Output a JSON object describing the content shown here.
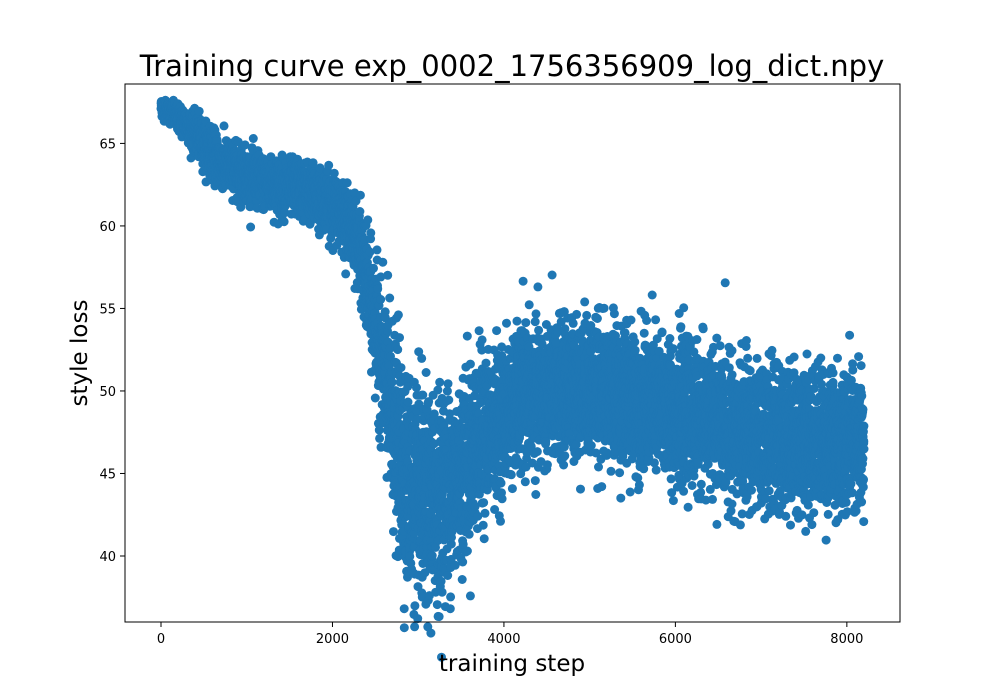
{
  "chart_data": {
    "type": "scatter",
    "title": "Training curve exp_0002_1756356909_log_dict.npy",
    "xlabel": "training step",
    "ylabel": "style loss",
    "xlim": [
      -420,
      8620
    ],
    "ylim": [
      36.0,
      68.6
    ],
    "xticks": [
      0,
      2000,
      4000,
      6000,
      8000
    ],
    "yticks": [
      40,
      45,
      50,
      55,
      60,
      65
    ],
    "grid": false,
    "legend": "none",
    "series": [
      {
        "color": "#1f77b4",
        "n_points": 8200,
        "x_range": [
          0,
          8200
        ],
        "trend": [
          {
            "x": 0,
            "y": 67.2
          },
          {
            "x": 300,
            "y": 66.2
          },
          {
            "x": 700,
            "y": 63.8
          },
          {
            "x": 1200,
            "y": 62.6
          },
          {
            "x": 1700,
            "y": 62.1
          },
          {
            "x": 2100,
            "y": 61.0
          },
          {
            "x": 2300,
            "y": 59.0
          },
          {
            "x": 2500,
            "y": 54.0
          },
          {
            "x": 2700,
            "y": 48.0
          },
          {
            "x": 2900,
            "y": 44.0
          },
          {
            "x": 3100,
            "y": 43.0
          },
          {
            "x": 3400,
            "y": 44.5
          },
          {
            "x": 3700,
            "y": 47.0
          },
          {
            "x": 4200,
            "y": 49.5
          },
          {
            "x": 5000,
            "y": 50.3
          },
          {
            "x": 6000,
            "y": 48.8
          },
          {
            "x": 7000,
            "y": 47.2
          },
          {
            "x": 8200,
            "y": 47.0
          }
        ],
        "spread": [
          {
            "x": 0,
            "s": 0.25
          },
          {
            "x": 600,
            "s": 0.7
          },
          {
            "x": 2200,
            "s": 0.9
          },
          {
            "x": 2500,
            "s": 1.8
          },
          {
            "x": 2800,
            "s": 3.2
          },
          {
            "x": 3300,
            "s": 3.0
          },
          {
            "x": 4000,
            "s": 2.0
          },
          {
            "x": 6000,
            "s": 2.0
          },
          {
            "x": 8200,
            "s": 2.1
          }
        ]
      }
    ]
  }
}
